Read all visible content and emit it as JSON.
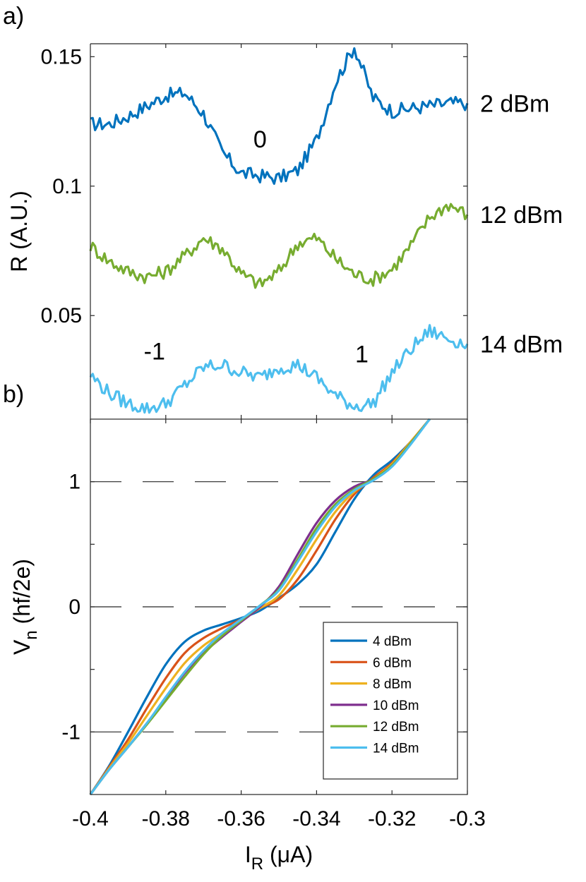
{
  "panels": {
    "a": "a)",
    "b": "b)"
  },
  "chart_data": [
    {
      "type": "line",
      "panel": "a",
      "xlim": [
        -0.4,
        -0.3
      ],
      "ylim": [
        0.01,
        0.155
      ],
      "yticks": [
        "0.05",
        "0.1",
        "0.15"
      ],
      "ytick_values": [
        0.05,
        0.1,
        0.15
      ],
      "ylabel": "R (A.U.)",
      "grid": false,
      "series": [
        {
          "name": "2 dBm",
          "color": "#0072BD",
          "x": [
            -0.4,
            -0.395,
            -0.39,
            -0.385,
            -0.38,
            -0.375,
            -0.37,
            -0.365,
            -0.36,
            -0.355,
            -0.35,
            -0.345,
            -0.34,
            -0.335,
            -0.33,
            -0.325,
            -0.32,
            -0.315,
            -0.31,
            -0.305,
            -0.3
          ],
          "y": [
            0.124,
            0.124,
            0.127,
            0.131,
            0.135,
            0.136,
            0.128,
            0.113,
            0.105,
            0.104,
            0.103,
            0.106,
            0.118,
            0.14,
            0.154,
            0.134,
            0.129,
            0.13,
            0.131,
            0.132,
            0.132
          ]
        },
        {
          "name": "12 dBm",
          "color": "#77AC30",
          "x": [
            -0.4,
            -0.395,
            -0.39,
            -0.385,
            -0.38,
            -0.375,
            -0.37,
            -0.365,
            -0.36,
            -0.355,
            -0.35,
            -0.345,
            -0.34,
            -0.335,
            -0.33,
            -0.325,
            -0.32,
            -0.315,
            -0.31,
            -0.305,
            -0.3
          ],
          "y": [
            0.077,
            0.071,
            0.067,
            0.065,
            0.067,
            0.073,
            0.08,
            0.076,
            0.066,
            0.062,
            0.067,
            0.078,
            0.08,
            0.072,
            0.066,
            0.064,
            0.068,
            0.077,
            0.088,
            0.093,
            0.089
          ]
        },
        {
          "name": "14 dBm",
          "color": "#4DBEEE",
          "x": [
            -0.4,
            -0.395,
            -0.39,
            -0.385,
            -0.38,
            -0.375,
            -0.37,
            -0.365,
            -0.36,
            -0.355,
            -0.35,
            -0.345,
            -0.34,
            -0.335,
            -0.33,
            -0.325,
            -0.32,
            -0.315,
            -0.31,
            -0.305,
            -0.3
          ],
          "y": [
            0.027,
            0.02,
            0.016,
            0.014,
            0.016,
            0.023,
            0.03,
            0.031,
            0.028,
            0.026,
            0.03,
            0.031,
            0.026,
            0.019,
            0.015,
            0.016,
            0.028,
            0.037,
            0.044,
            0.041,
            0.039
          ]
        }
      ],
      "annotations": [
        {
          "text": "0",
          "x": -0.355,
          "y": 0.115
        },
        {
          "text": "-1",
          "x": -0.383,
          "y": 0.033
        },
        {
          "text": "1",
          "x": -0.328,
          "y": 0.032
        }
      ]
    },
    {
      "type": "line",
      "panel": "b",
      "xlim": [
        -0.4,
        -0.3
      ],
      "ylim": [
        -1.5,
        1.5
      ],
      "xticks": [
        "-0.4",
        "-0.38",
        "-0.36",
        "-0.34",
        "-0.32",
        "-0.3"
      ],
      "xtick_values": [
        -0.4,
        -0.38,
        -0.36,
        -0.34,
        -0.32,
        -0.3
      ],
      "yticks": [
        "-1",
        "0",
        "1"
      ],
      "ytick_values": [
        -1,
        0,
        1
      ],
      "xlabel": "I",
      "xlabel_sub": "R",
      "xlabel_unit": " (μA)",
      "ylabel": "V",
      "ylabel_sub": "n",
      "ylabel_unit": " (hf/2e)",
      "dashed_lines": [
        -1,
        0,
        1
      ],
      "legend_position": "bottom-right",
      "series": [
        {
          "name": "4 dBm",
          "color": "#0072BD",
          "x": [
            -0.4,
            -0.395,
            -0.39,
            -0.385,
            -0.38,
            -0.375,
            -0.37,
            -0.365,
            -0.36,
            -0.355,
            -0.35,
            -0.345,
            -0.34,
            -0.335,
            -0.33,
            -0.325,
            -0.32,
            -0.315,
            -0.31
          ],
          "y": [
            -1.5,
            -1.27,
            -1.0,
            -0.72,
            -0.46,
            -0.28,
            -0.19,
            -0.14,
            -0.09,
            -0.03,
            0.07,
            0.18,
            0.34,
            0.6,
            0.86,
            1.05,
            1.17,
            1.32,
            1.5
          ]
        },
        {
          "name": "6 dBm",
          "color": "#D95319",
          "x": [
            -0.4,
            -0.395,
            -0.39,
            -0.385,
            -0.38,
            -0.375,
            -0.37,
            -0.365,
            -0.36,
            -0.355,
            -0.35,
            -0.345,
            -0.34,
            -0.335,
            -0.33,
            -0.325,
            -0.32,
            -0.315,
            -0.31
          ],
          "y": [
            -1.5,
            -1.28,
            -1.06,
            -0.81,
            -0.57,
            -0.37,
            -0.25,
            -0.17,
            -0.1,
            -0.01,
            0.06,
            0.22,
            0.45,
            0.7,
            0.9,
            1.03,
            1.15,
            1.32,
            1.5
          ]
        },
        {
          "name": "8 dBm",
          "color": "#EDB120",
          "x": [
            -0.4,
            -0.395,
            -0.39,
            -0.385,
            -0.38,
            -0.375,
            -0.37,
            -0.365,
            -0.36,
            -0.355,
            -0.35,
            -0.345,
            -0.34,
            -0.335,
            -0.33,
            -0.325,
            -0.32,
            -0.315,
            -0.31
          ],
          "y": [
            -1.5,
            -1.29,
            -1.09,
            -0.87,
            -0.65,
            -0.45,
            -0.31,
            -0.21,
            -0.11,
            -0.01,
            0.09,
            0.3,
            0.54,
            0.76,
            0.92,
            1.02,
            1.14,
            1.32,
            1.5
          ]
        },
        {
          "name": "10 dBm",
          "color": "#7E2F8E",
          "x": [
            -0.4,
            -0.395,
            -0.39,
            -0.385,
            -0.38,
            -0.375,
            -0.37,
            -0.365,
            -0.36,
            -0.355,
            -0.35,
            -0.345,
            -0.34,
            -0.335,
            -0.33,
            -0.325,
            -0.32,
            -0.315,
            -0.31
          ],
          "y": [
            -1.5,
            -1.3,
            -1.12,
            -0.93,
            -0.73,
            -0.53,
            -0.37,
            -0.24,
            -0.12,
            0.0,
            0.16,
            0.42,
            0.67,
            0.85,
            0.96,
            1.02,
            1.13,
            1.31,
            1.5
          ]
        },
        {
          "name": "12 dBm",
          "color": "#77AC30",
          "x": [
            -0.4,
            -0.395,
            -0.39,
            -0.385,
            -0.38,
            -0.375,
            -0.37,
            -0.365,
            -0.36,
            -0.355,
            -0.35,
            -0.345,
            -0.34,
            -0.335,
            -0.33,
            -0.325,
            -0.32,
            -0.315,
            -0.31
          ],
          "y": [
            -1.5,
            -1.3,
            -1.12,
            -0.94,
            -0.75,
            -0.56,
            -0.38,
            -0.23,
            -0.11,
            0.01,
            0.14,
            0.38,
            0.63,
            0.82,
            0.94,
            1.02,
            1.13,
            1.31,
            1.5
          ]
        },
        {
          "name": "14 dBm",
          "color": "#4DBEEE",
          "x": [
            -0.4,
            -0.395,
            -0.39,
            -0.385,
            -0.38,
            -0.375,
            -0.37,
            -0.365,
            -0.36,
            -0.355,
            -0.35,
            -0.345,
            -0.34,
            -0.335,
            -0.33,
            -0.325,
            -0.32,
            -0.315,
            -0.31
          ],
          "y": [
            -1.5,
            -1.3,
            -1.12,
            -0.93,
            -0.72,
            -0.52,
            -0.35,
            -0.21,
            -0.1,
            0.01,
            0.13,
            0.36,
            0.6,
            0.8,
            0.93,
            1.01,
            1.12,
            1.3,
            1.5
          ]
        }
      ]
    }
  ]
}
